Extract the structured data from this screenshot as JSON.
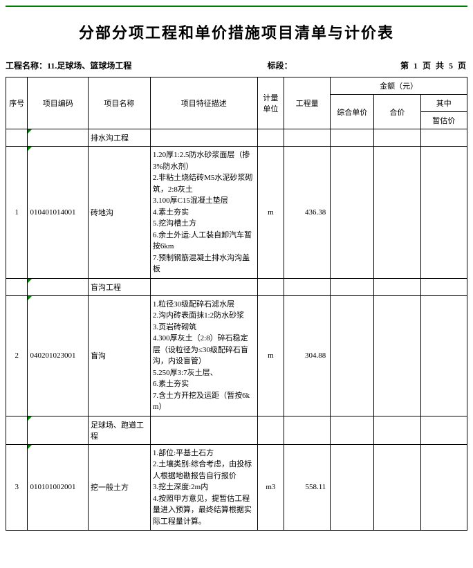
{
  "title": "分部分项工程和单价措施项目清单与计价表",
  "meta": {
    "project_label": "工程名称：",
    "project_name": "11.足球场、篮球场工程",
    "section_label": "标段：",
    "section_value": "",
    "page_text": "第 1 页 共 5 页"
  },
  "header": {
    "seq": "序号",
    "code": "项目编码",
    "name": "项目名称",
    "desc": "项目特征描述",
    "unit": "计量单位",
    "qty": "工程量",
    "amount": "金额（元）",
    "uprice": "综合单价",
    "total": "合价",
    "qizhong": "其中",
    "zangu": "暂估价"
  },
  "rows": [
    {
      "type": "section",
      "name": "排水沟工程"
    },
    {
      "type": "item",
      "seq": "1",
      "code": "010401014001",
      "name": "砖地沟",
      "desc": "1.20厚1:2.5防水砂浆面层（掺3%防水剂）\n2.非粘土烧结砖M5水泥砂浆砌筑，2:8灰土\n3.100厚C15混凝土垫层\n4.素土夯实\n5.挖沟槽土方\n6.余土外运:人工装自卸汽车暂按6km\n7.预制钢筋混凝土排水沟沟盖板",
      "unit": "m",
      "qty": "436.38"
    },
    {
      "type": "section",
      "name": "盲沟工程"
    },
    {
      "type": "item",
      "seq": "2",
      "code": "040201023001",
      "name": "盲沟",
      "desc": "1.粒径30级配碎石滤水层\n2.沟内砖表面抹1:2防水砂浆\n3.页岩砖砌筑\n4.300厚灰土（2:8）碎石稳定层（设粒径为≤30级配碎石盲沟，内设盲管）\n5.250厚3:7灰土层、\n6.素土夯实\n7.含土方开挖及运距（暂按6km）",
      "unit": "m",
      "qty": "304.88"
    },
    {
      "type": "section",
      "name": "足球场、跑道工程"
    },
    {
      "type": "item",
      "seq": "3",
      "code": "010101002001",
      "name": "挖一般土方",
      "desc": "1.部位:平基土石方\n2.土壤类别:综合考虑，由投标人根据地勘报告自行报价\n3.挖土深度:2m内\n4.按照甲方意见，提暂估工程量进入预算，最终结算根据实际工程量计算。",
      "unit": "m3",
      "qty": "558.11"
    }
  ]
}
